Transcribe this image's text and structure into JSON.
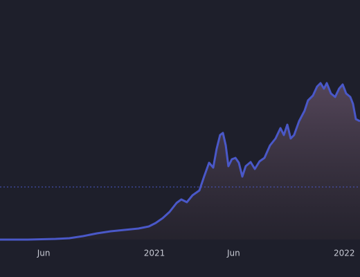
{
  "chart_data": {
    "type": "area",
    "color": "#4a58c8",
    "ref_line": 30.4,
    "xlim": [
      2020.187,
      2022.083
    ],
    "ylim": [
      0,
      100
    ],
    "xticks": [
      {
        "value": 2020.417,
        "label": "Jun"
      },
      2021,
      {
        "value": 2021.417,
        "label": "Jun"
      },
      2022
    ],
    "x": [
      2020.187,
      2020.333,
      2020.479,
      2020.552,
      2020.624,
      2020.697,
      2020.77,
      2020.843,
      2020.916,
      2020.971,
      2021.007,
      2021.044,
      2021.08,
      2021.117,
      2021.142,
      2021.171,
      2021.201,
      2021.237,
      2021.262,
      2021.288,
      2021.31,
      2021.328,
      2021.346,
      2021.361,
      2021.376,
      2021.39,
      2021.408,
      2021.427,
      2021.445,
      2021.463,
      2021.481,
      2021.507,
      2021.529,
      2021.554,
      2021.58,
      2021.609,
      2021.638,
      2021.664,
      2021.682,
      2021.7,
      2021.718,
      2021.736,
      2021.762,
      2021.791,
      2021.809,
      2021.835,
      2021.857,
      2021.875,
      2021.893,
      2021.908,
      2021.93,
      2021.952,
      2021.973,
      2021.992,
      2022.01,
      2022.032,
      2022.046,
      2022.061,
      2022.083
    ],
    "values": [
      0,
      0,
      0.4,
      0.8,
      2,
      3.6,
      4.8,
      5.6,
      6.4,
      7.6,
      9.6,
      12.4,
      16,
      21.2,
      23.2,
      21.6,
      25.6,
      28.4,
      36.4,
      44.4,
      41.6,
      52.4,
      60.4,
      61.6,
      54.4,
      42.4,
      46.4,
      47.2,
      44.4,
      36.4,
      42.4,
      44.8,
      40.8,
      45.2,
      47.2,
      54.4,
      58.4,
      64.4,
      60.4,
      66.4,
      58.4,
      60.4,
      68.4,
      74.4,
      80.4,
      83.2,
      88.4,
      90.4,
      87.2,
      90.4,
      84.4,
      82.4,
      87.2,
      89.6,
      84.4,
      82.4,
      78.4,
      69.6,
      68.4
    ]
  }
}
